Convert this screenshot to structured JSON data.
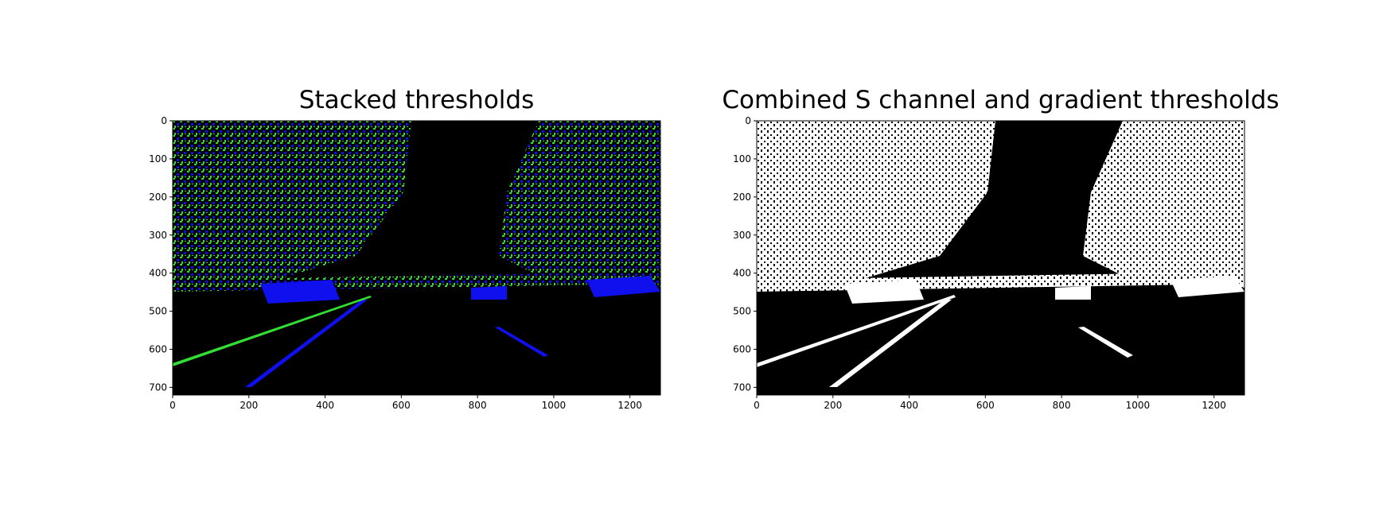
{
  "chart_data": [
    {
      "type": "image",
      "title": "Stacked thresholds",
      "xlim": [
        0,
        1280
      ],
      "ylim": [
        720,
        0
      ],
      "xticks": [
        0,
        200,
        400,
        600,
        800,
        1000,
        1200
      ],
      "yticks": [
        0,
        100,
        200,
        300,
        400,
        500,
        600,
        700
      ]
    },
    {
      "type": "image",
      "title": "Combined S channel and gradient thresholds",
      "xlim": [
        0,
        1280
      ],
      "ylim": [
        720,
        0
      ],
      "xticks": [
        0,
        200,
        400,
        600,
        800,
        1000,
        1200
      ],
      "yticks": [
        0,
        100,
        200,
        300,
        400,
        500,
        600,
        700
      ]
    }
  ]
}
